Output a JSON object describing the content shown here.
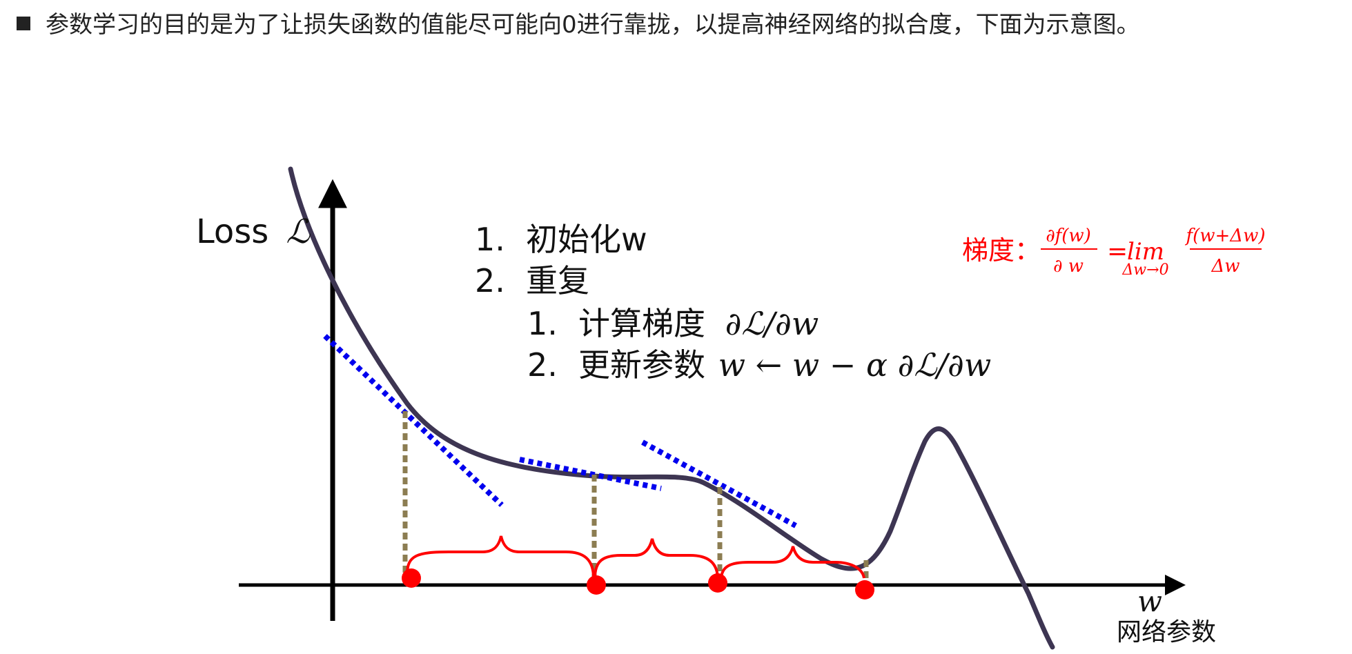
{
  "intro": {
    "text": "参数学习的目的是为了让损失函数的值能尽可能向0进行靠拢，以提高神经网络的拟合度，下面为示意图。"
  },
  "axes": {
    "y_label": "Loss",
    "y_symbol": "ℒ",
    "x_symbol": "w",
    "x_label": "网络参数"
  },
  "algorithm": {
    "steps": [
      {
        "num": "1.",
        "text": "初始化w"
      },
      {
        "num": "2.",
        "text": "重复"
      }
    ],
    "substeps": [
      {
        "num": "1.",
        "text": "计算梯度",
        "math": "∂ℒ/∂w"
      },
      {
        "num": "2.",
        "text": "更新参数",
        "math": "w ← w − α ∂ℒ/∂w"
      }
    ]
  },
  "gradient": {
    "label": "梯度：",
    "numerator": "∂f(w)",
    "denominator": "∂ w",
    "equals": "=",
    "lim": "lim",
    "lim_sub": "Δw→0",
    "frac_num": "f(w+Δw)",
    "frac_den": "Δw"
  },
  "colors": {
    "curve": "#3d3552",
    "tangent": "#0000ee",
    "dashed_vertical": "#8c7d52",
    "points": "#ff0000",
    "brace": "#ff0000",
    "axes": "#000000",
    "gradient_text": "#ff0000"
  },
  "icons": {
    "bullet": "square-bullet"
  }
}
